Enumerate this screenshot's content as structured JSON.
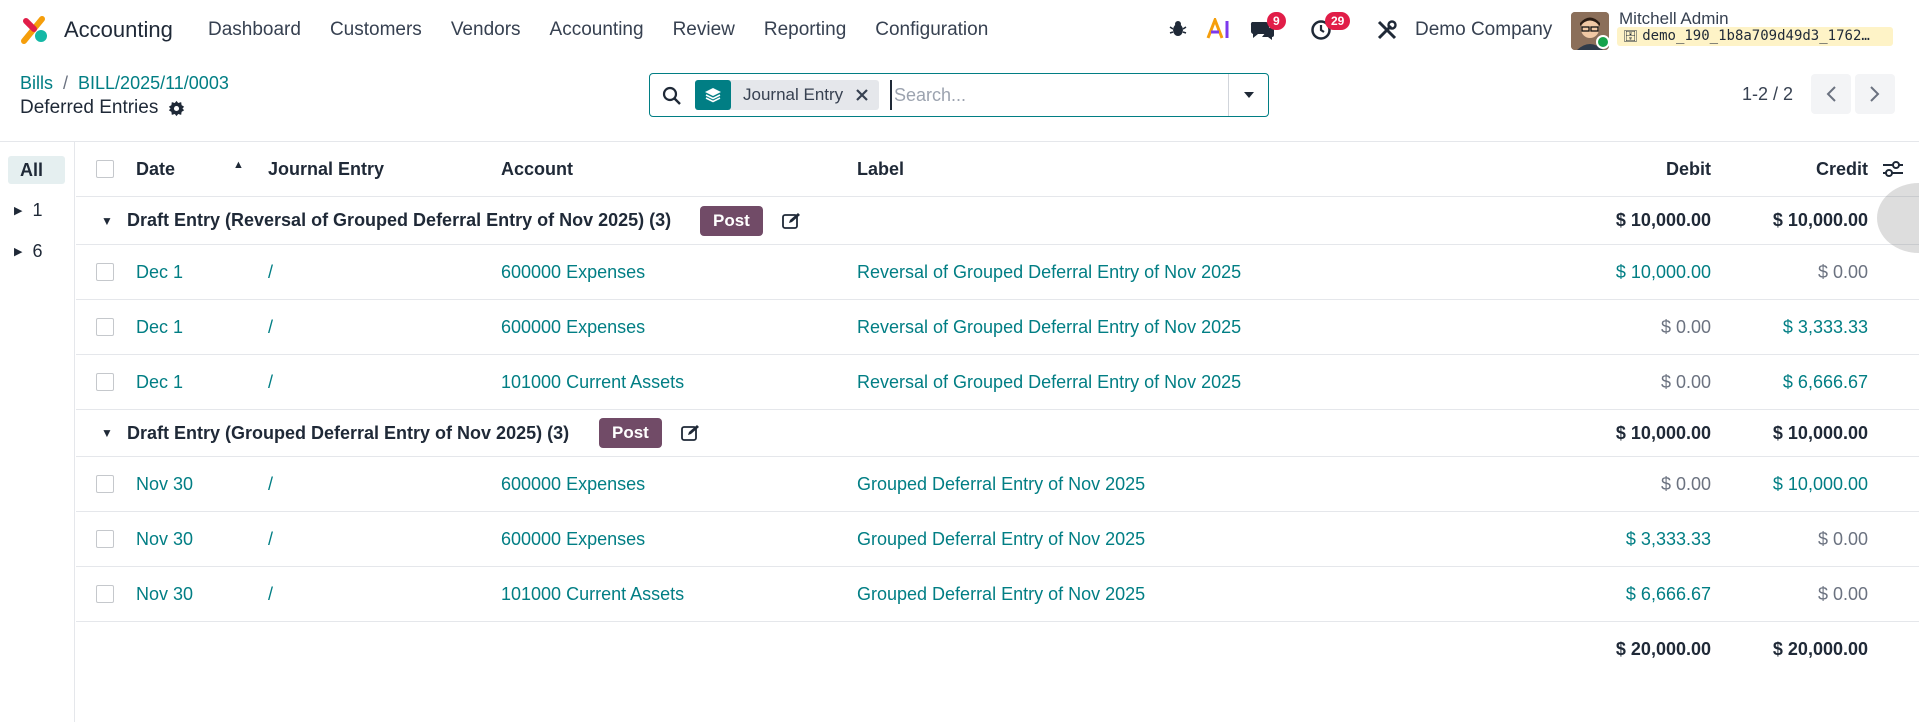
{
  "navbar": {
    "app_name": "Accounting",
    "menu": [
      "Dashboard",
      "Customers",
      "Vendors",
      "Accounting",
      "Review",
      "Reporting",
      "Configuration"
    ],
    "messages_count": "9",
    "activities_count": "29",
    "company": "Demo Company",
    "user_name": "Mitchell Admin",
    "database": "demo_190_1b8a709d49d3_1762…"
  },
  "breadcrumb": {
    "parent": "Bills",
    "record": "BILL/2025/11/0003",
    "separator": "/"
  },
  "page_title": "Deferred Entries",
  "search": {
    "facet_label": "Journal Entry",
    "placeholder": "Search..."
  },
  "pager": {
    "value": "1-2 / 2"
  },
  "side_panel": {
    "items": [
      {
        "label": "All"
      },
      {
        "label": "1"
      },
      {
        "label": "6"
      }
    ]
  },
  "table": {
    "columns": {
      "date": "Date",
      "journal_entry": "Journal Entry",
      "account": "Account",
      "label": "Label",
      "debit": "Debit",
      "credit": "Credit"
    },
    "groups": [
      {
        "title": "Draft Entry (Reversal of Grouped Deferral Entry of Nov 2025) (3)",
        "post_label": "Post",
        "debit": "$ 10,000.00",
        "credit": "$ 10,000.00",
        "rows": [
          {
            "date": "Dec 1",
            "entry": "/",
            "account": "600000 Expenses",
            "label": "Reversal of Grouped Deferral Entry of Nov 2025",
            "debit": "$ 10,000.00",
            "credit": "$ 0.00"
          },
          {
            "date": "Dec 1",
            "entry": "/",
            "account": "600000 Expenses",
            "label": "Reversal of Grouped Deferral Entry of Nov 2025",
            "debit": "$ 0.00",
            "credit": "$ 3,333.33"
          },
          {
            "date": "Dec 1",
            "entry": "/",
            "account": "101000 Current Assets",
            "label": "Reversal of Grouped Deferral Entry of Nov 2025",
            "debit": "$ 0.00",
            "credit": "$ 6,666.67"
          }
        ]
      },
      {
        "title": "Draft Entry (Grouped Deferral Entry of Nov 2025) (3)",
        "post_label": "Post",
        "debit": "$ 10,000.00",
        "credit": "$ 10,000.00",
        "rows": [
          {
            "date": "Nov 30",
            "entry": "/",
            "account": "600000 Expenses",
            "label": "Grouped Deferral Entry of Nov 2025",
            "debit": "$ 0.00",
            "credit": "$ 10,000.00"
          },
          {
            "date": "Nov 30",
            "entry": "/",
            "account": "600000 Expenses",
            "label": "Grouped Deferral Entry of Nov 2025",
            "debit": "$ 3,333.33",
            "credit": "$ 0.00"
          },
          {
            "date": "Nov 30",
            "entry": "/",
            "account": "101000 Current Assets",
            "label": "Grouped Deferral Entry of Nov 2025",
            "debit": "$ 6,666.67",
            "credit": "$ 0.00"
          }
        ]
      }
    ],
    "totals": {
      "debit": "$ 20,000.00",
      "credit": "$ 20,000.00"
    }
  },
  "colors": {
    "accent": "#017e84",
    "post_button": "#714b67",
    "badge": "#e11d48"
  }
}
